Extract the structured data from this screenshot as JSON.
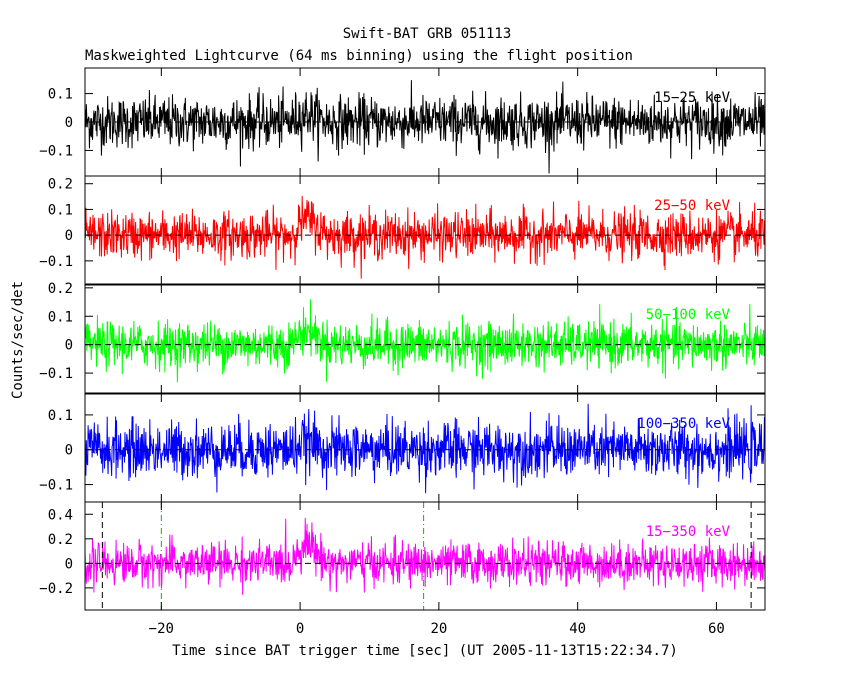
{
  "title": "Swift-BAT GRB 051113",
  "subtitle": "Maskweighted Lightcurve (64 ms binning) using the flight position",
  "chart_data": {
    "type": "line",
    "title": "Swift-BAT GRB 051113",
    "subtitle": "Maskweighted Lightcurve (64 ms binning) using the flight position",
    "xlabel": "Time since BAT trigger time [sec] (UT 2005-11-13T15:22:34.7)",
    "ylabel": "Counts/sec/det",
    "xlim": [
      -31,
      67
    ],
    "xticks": [
      -20,
      0,
      20,
      40,
      60
    ],
    "xtick_labels": [
      "−20",
      "0",
      "20",
      "40",
      "60"
    ],
    "bin_seconds": 0.064,
    "panels": [
      {
        "name": "15-25 keV",
        "label": "15−25 keV",
        "color": "#000000",
        "ylim": [
          -0.19,
          0.19
        ],
        "yticks": [
          -0.1,
          0,
          0.1
        ],
        "ytick_labels": [
          "−0.1",
          "0",
          "0.1"
        ],
        "noise_sigma": 0.045,
        "burst_peak": 0.03
      },
      {
        "name": "25-50 keV",
        "label": "25−50 keV",
        "color": "#ff0000",
        "ylim": [
          -0.19,
          0.23
        ],
        "yticks": [
          -0.1,
          0,
          0.1,
          0.2
        ],
        "ytick_labels": [
          "−0.1",
          "0",
          "0.1",
          "0.2"
        ],
        "noise_sigma": 0.045,
        "burst_peak": 0.06
      },
      {
        "name": "50-100 keV",
        "label": "50−100 keV",
        "color": "#00ff00",
        "ylim": [
          -0.17,
          0.21
        ],
        "yticks": [
          -0.1,
          0,
          0.1,
          0.2
        ],
        "ytick_labels": [
          "−0.1",
          "0",
          "0.1",
          "0.2"
        ],
        "noise_sigma": 0.04,
        "burst_peak": 0.05
      },
      {
        "name": "100-350 keV",
        "label": "100−350 keV",
        "color": "#0000ff",
        "ylim": [
          -0.15,
          0.16
        ],
        "yticks": [
          -0.1,
          0,
          0.1
        ],
        "ytick_labels": [
          "−0.1",
          "0",
          "0.1"
        ],
        "noise_sigma": 0.04,
        "burst_peak": 0.02
      },
      {
        "name": "15-350 keV",
        "label": "15−350 keV",
        "color": "#ff00ff",
        "ylim": [
          -0.38,
          0.5
        ],
        "yticks": [
          -0.2,
          0,
          0.2,
          0.4
        ],
        "ytick_labels": [
          "−0.2",
          "0",
          "0.2",
          "0.4"
        ],
        "noise_sigma": 0.085,
        "burst_peak": 0.17
      }
    ],
    "markers": [
      {
        "x": -28.5,
        "color": "#000000",
        "style": "dashed"
      },
      {
        "x": 65.0,
        "color": "#000000",
        "style": "dashed"
      },
      {
        "x": -20.0,
        "color": "#00c000",
        "style": "dashdot"
      },
      {
        "x": 17.8,
        "color": "#00c000",
        "style": "dashdot"
      }
    ],
    "zero_line": true,
    "grid": false
  }
}
